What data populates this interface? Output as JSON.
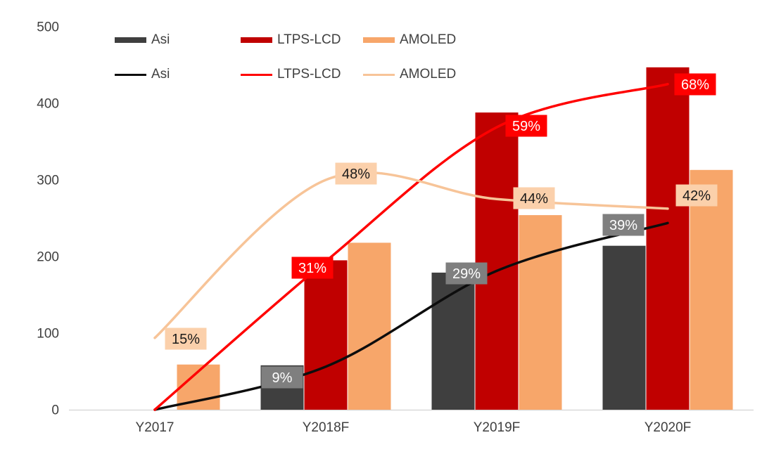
{
  "chart_data": {
    "type": "combo-bar-line",
    "title": "",
    "categories": [
      "Y2017",
      "Y2018F",
      "Y2019F",
      "Y2020F"
    ],
    "bar_series": [
      {
        "name": "Asi",
        "color": "#3F3F3F",
        "values": [
          null,
          58,
          179,
          214
        ]
      },
      {
        "name": "LTPS-LCD",
        "color": "#C00000",
        "values": [
          null,
          195,
          388,
          447
        ]
      },
      {
        "name": "AMOLED",
        "color": "#F7A66A",
        "values": [
          59,
          218,
          254,
          313
        ]
      }
    ],
    "line_series": [
      {
        "name": "Asi",
        "color": "#0D0D0D",
        "label_bg": "#7F7F7F",
        "label_color": "#FFFFFF",
        "percent_values": [
          0,
          9,
          29,
          39
        ],
        "data_labels": [
          null,
          "9%",
          "29%",
          "39%"
        ]
      },
      {
        "name": "LTPS-LCD",
        "color": "#FF0000",
        "label_bg": "#FF0000",
        "label_color": "#FFFFFF",
        "percent_values": [
          0,
          31,
          59,
          68
        ],
        "data_labels": [
          null,
          "31%",
          "59%",
          "68%"
        ]
      },
      {
        "name": "AMOLED",
        "color": "#F7C498",
        "label_bg": "#FBD0AB",
        "label_color": "#1A1A1A",
        "percent_values": [
          15,
          48,
          44,
          42
        ],
        "data_labels": [
          "15%",
          "48%",
          "44%",
          "42%"
        ]
      }
    ],
    "y_axis": {
      "min": 0,
      "max": 500,
      "ticks": [
        0,
        100,
        200,
        300,
        400,
        500
      ]
    },
    "y2_axis": {
      "min": 0,
      "max": 80,
      "unit": "%",
      "visible": false
    },
    "grid": false,
    "axis_line_color": "#D9D9D9",
    "text_color": "#404040",
    "legend_position": "top-left-two-rows"
  }
}
